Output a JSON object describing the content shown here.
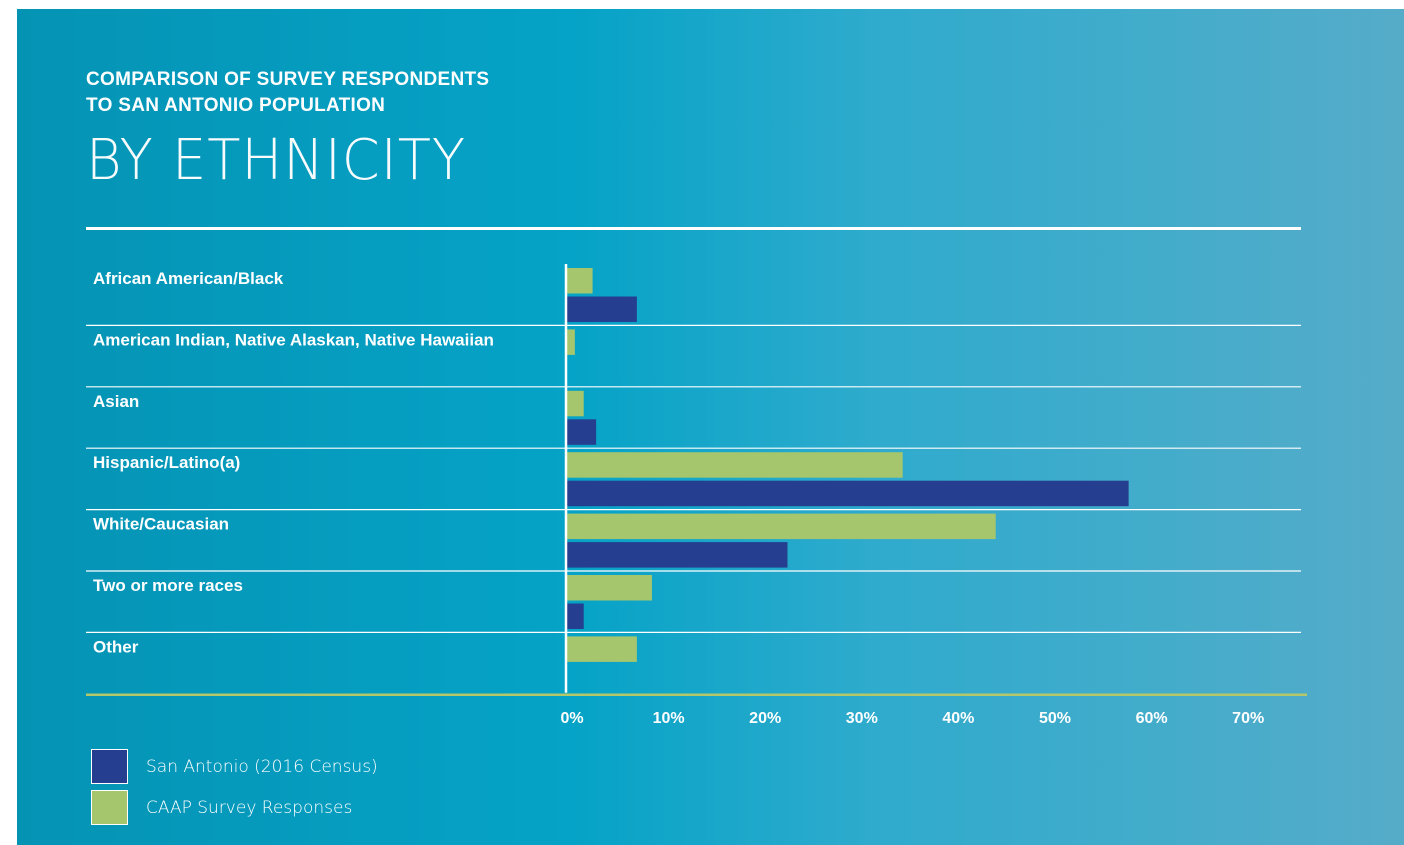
{
  "header": {
    "supertitle_line1": "COMPARISON OF SURVEY RESPONDENTS",
    "supertitle_line2": "TO SAN ANTONIO POPULATION",
    "title": "BY ETHNICITY"
  },
  "colors": {
    "background_left": "#0593b4",
    "background_right": "#55acc9",
    "census_bar": "#263e8f",
    "survey_bar": "#a5c66d",
    "gridline": "#ffffff",
    "baseline": "#b4c86a"
  },
  "chart_data": {
    "type": "bar",
    "orientation": "horizontal",
    "categories": [
      "African American/Black",
      "American Indian, Native Alaskan, Native Hawaiian",
      "Asian",
      "Hispanic/Latino(a)",
      "White/Caucasian",
      "Two or more races",
      "Other"
    ],
    "series": [
      {
        "name": "CAAP Survey Responses",
        "color": "#a5c66d",
        "values": [
          3,
          1,
          2,
          38,
          48.5,
          9.7,
          8
        ]
      },
      {
        "name": "San Antonio (2016 Census)",
        "color": "#263e8f",
        "values": [
          8,
          null,
          3.4,
          63.5,
          25,
          2,
          null
        ]
      }
    ],
    "x_ticks": [
      "0%",
      "10%",
      "20%",
      "30%",
      "40%",
      "50%",
      "60%",
      "70%"
    ],
    "xlim": [
      0,
      70
    ],
    "grid": true,
    "legend_position": "bottom-left"
  },
  "legend": [
    {
      "label": "San Antonio (2016 Census)",
      "color": "#263e8f"
    },
    {
      "label": "CAAP Survey Responses",
      "color": "#a5c66d"
    }
  ]
}
